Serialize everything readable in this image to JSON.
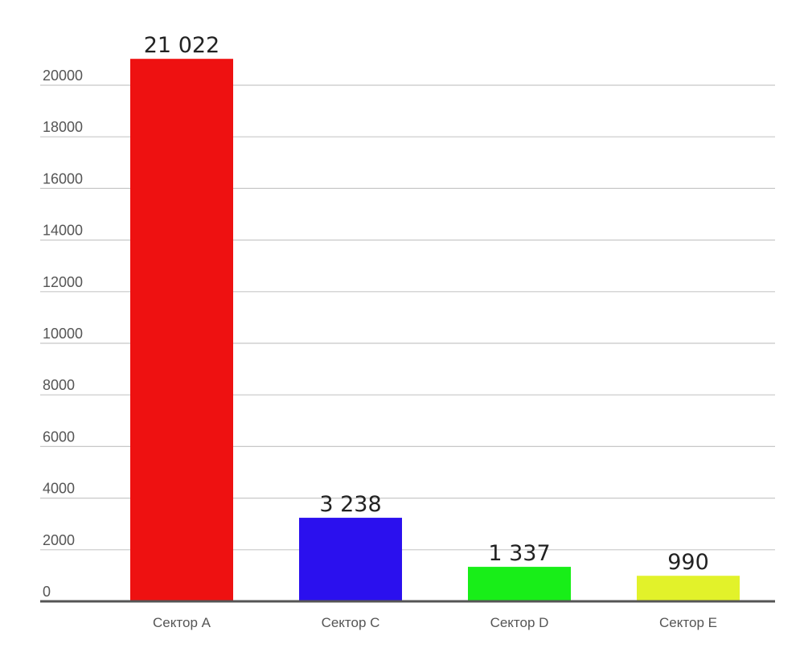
{
  "chart_data": {
    "type": "bar",
    "title": "",
    "xlabel": "",
    "ylabel": "",
    "categories": [
      "Сектор A",
      "Сектор C",
      "Сектор D",
      "Сектор E"
    ],
    "values": [
      21022,
      3238,
      1337,
      990
    ],
    "data_labels": [
      "21 022",
      "3 238",
      "1 337",
      "990"
    ],
    "colors": [
      "#ee1111",
      "#2b10ee",
      "#18ee18",
      "#e2f22a"
    ],
    "ylim": [
      0,
      20000
    ],
    "yticks": [
      0,
      2000,
      4000,
      6000,
      8000,
      10000,
      12000,
      14000,
      16000,
      18000,
      20000
    ],
    "ytick_labels": [
      "0",
      "2000",
      "4000",
      "6000",
      "8000",
      "10000",
      "12000",
      "14000",
      "16000",
      "18000",
      "20000"
    ],
    "grid": true,
    "legend": "none"
  }
}
